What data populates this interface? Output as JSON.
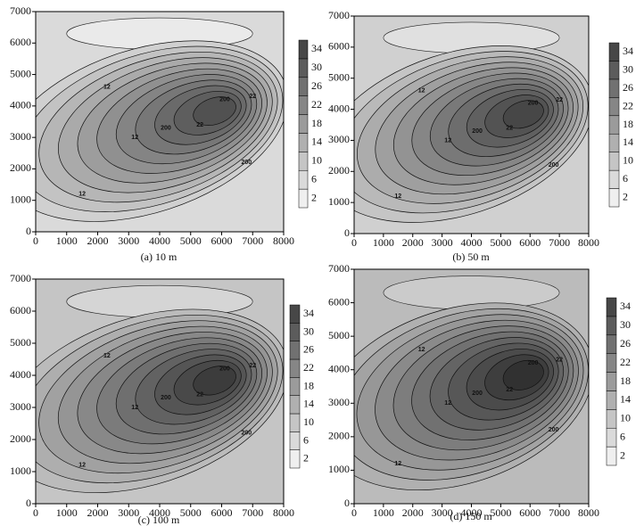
{
  "chart_data": [
    {
      "type": "contour",
      "caption": "(a) 10 m",
      "xlim": [
        0,
        8000
      ],
      "ylim": [
        0,
        7000
      ],
      "xticks": [
        0,
        1000,
        2000,
        3000,
        4000,
        5000,
        6000,
        7000,
        8000
      ],
      "yticks": [
        0,
        1000,
        2000,
        3000,
        4000,
        5000,
        6000,
        7000
      ],
      "clim": [
        0,
        36
      ],
      "cticks": [
        2,
        6,
        10,
        14,
        18,
        22,
        26,
        30,
        34
      ],
      "contour_labels": [
        "12",
        "200",
        "22",
        "12",
        "200",
        "12",
        "200",
        "22"
      ]
    },
    {
      "type": "contour",
      "caption": "(b) 50 m",
      "xlim": [
        0,
        8000
      ],
      "ylim": [
        0,
        7000
      ],
      "xticks": [
        0,
        1000,
        2000,
        3000,
        4000,
        5000,
        6000,
        7000,
        8000
      ],
      "yticks": [
        0,
        1000,
        2000,
        3000,
        4000,
        5000,
        6000,
        7000
      ],
      "clim": [
        0,
        36
      ],
      "cticks": [
        2,
        6,
        10,
        14,
        18,
        22,
        26,
        30,
        34
      ],
      "contour_labels": [
        "12",
        "200",
        "22",
        "12",
        "200",
        "12",
        "200",
        "22"
      ]
    },
    {
      "type": "contour",
      "caption": "(c) 100 m",
      "xlim": [
        0,
        8000
      ],
      "ylim": [
        0,
        7000
      ],
      "xticks": [
        0,
        1000,
        2000,
        3000,
        4000,
        5000,
        6000,
        7000,
        8000
      ],
      "yticks": [
        0,
        1000,
        2000,
        3000,
        4000,
        5000,
        6000,
        7000
      ],
      "clim": [
        0,
        36
      ],
      "cticks": [
        2,
        6,
        10,
        14,
        18,
        22,
        26,
        30,
        34
      ],
      "contour_labels": [
        "12",
        "200",
        "22",
        "12",
        "200",
        "12",
        "200",
        "22"
      ]
    },
    {
      "type": "contour",
      "caption": "(d) 150 m",
      "xlim": [
        0,
        8000
      ],
      "ylim": [
        0,
        7000
      ],
      "xticks": [
        0,
        1000,
        2000,
        3000,
        4000,
        5000,
        6000,
        7000,
        8000
      ],
      "yticks": [
        0,
        1000,
        2000,
        3000,
        4000,
        5000,
        6000,
        7000
      ],
      "clim": [
        0,
        36
      ],
      "cticks": [
        2,
        6,
        10,
        14,
        18,
        22,
        26,
        30,
        34
      ],
      "contour_labels": [
        "12",
        "200",
        "22",
        "12",
        "200",
        "12",
        "200",
        "22"
      ]
    }
  ]
}
